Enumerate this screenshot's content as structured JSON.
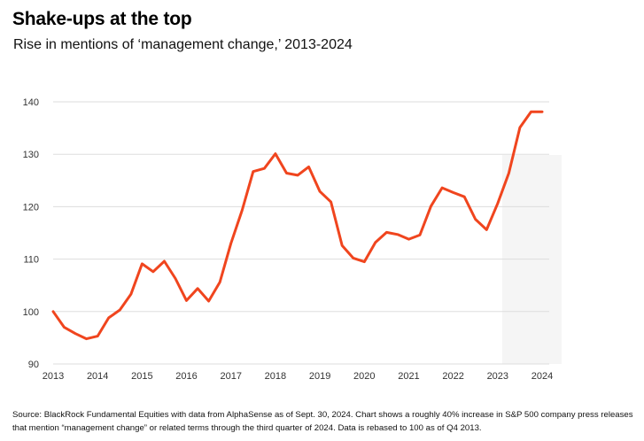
{
  "header": {
    "title": "Shake-ups at the top",
    "subtitle": "Rise in mentions of ‘management change,’ 2013-2024"
  },
  "footer": {
    "source": "Source: BlackRock Fundamental Equities with data from AlphaSense as of Sept. 30, 2024. Chart shows a roughly 40% increase in S&P 500 company press releases that mention “management change” or related terms through the third quarter of 2024. Data is rebased to 100 as of Q4 2013."
  },
  "colors": {
    "line": "#f0451e",
    "grid": "#dddddd",
    "band": "#f5f5f5"
  },
  "chart_data": {
    "type": "line",
    "title": "Shake-ups at the top",
    "subtitle": "Rise in mentions of ‘management change,’ 2013-2024",
    "xlabel": "",
    "ylabel": "",
    "ylim": [
      90,
      140
    ],
    "xlim": [
      2013,
      2024.75
    ],
    "yticks": [
      90,
      100,
      110,
      120,
      130,
      140
    ],
    "xticks": [
      "2013",
      "2014",
      "2015",
      "2016",
      "2017",
      "2018",
      "2019",
      "2020",
      "2021",
      "2022",
      "2023",
      "2024"
    ],
    "grid": true,
    "legend": "none",
    "series": [
      {
        "color": "#f0451e",
        "x": [
          2013.0,
          2013.25,
          2013.5,
          2013.75,
          2014.0,
          2014.25,
          2014.5,
          2014.75,
          2015.0,
          2015.25,
          2015.5,
          2015.75,
          2016.0,
          2016.25,
          2016.5,
          2016.75,
          2017.0,
          2017.25,
          2017.5,
          2017.75,
          2018.0,
          2018.25,
          2018.5,
          2018.75,
          2019.0,
          2019.25,
          2019.5,
          2019.75,
          2020.0,
          2020.25,
          2020.5,
          2020.75,
          2021.0,
          2021.25,
          2021.5,
          2021.75,
          2022.0,
          2022.25,
          2022.5,
          2022.75,
          2023.0,
          2023.25,
          2023.5,
          2023.75,
          2024.0
        ],
        "values": [
          100.0,
          97.0,
          95.8,
          94.8,
          95.3,
          98.8,
          100.3,
          103.3,
          109.1,
          107.6,
          109.6,
          106.3,
          102.1,
          104.4,
          102.0,
          105.6,
          113.0,
          119.3,
          126.7,
          127.3,
          130.1,
          126.4,
          126.0,
          127.6,
          122.9,
          120.9,
          112.6,
          110.2,
          109.5,
          113.2,
          115.1,
          114.7,
          113.8,
          114.6,
          120.1,
          123.6,
          122.7,
          121.9,
          117.6,
          115.6,
          120.6,
          126.4,
          135.1,
          138.1,
          138.1
        ]
      }
    ]
  }
}
